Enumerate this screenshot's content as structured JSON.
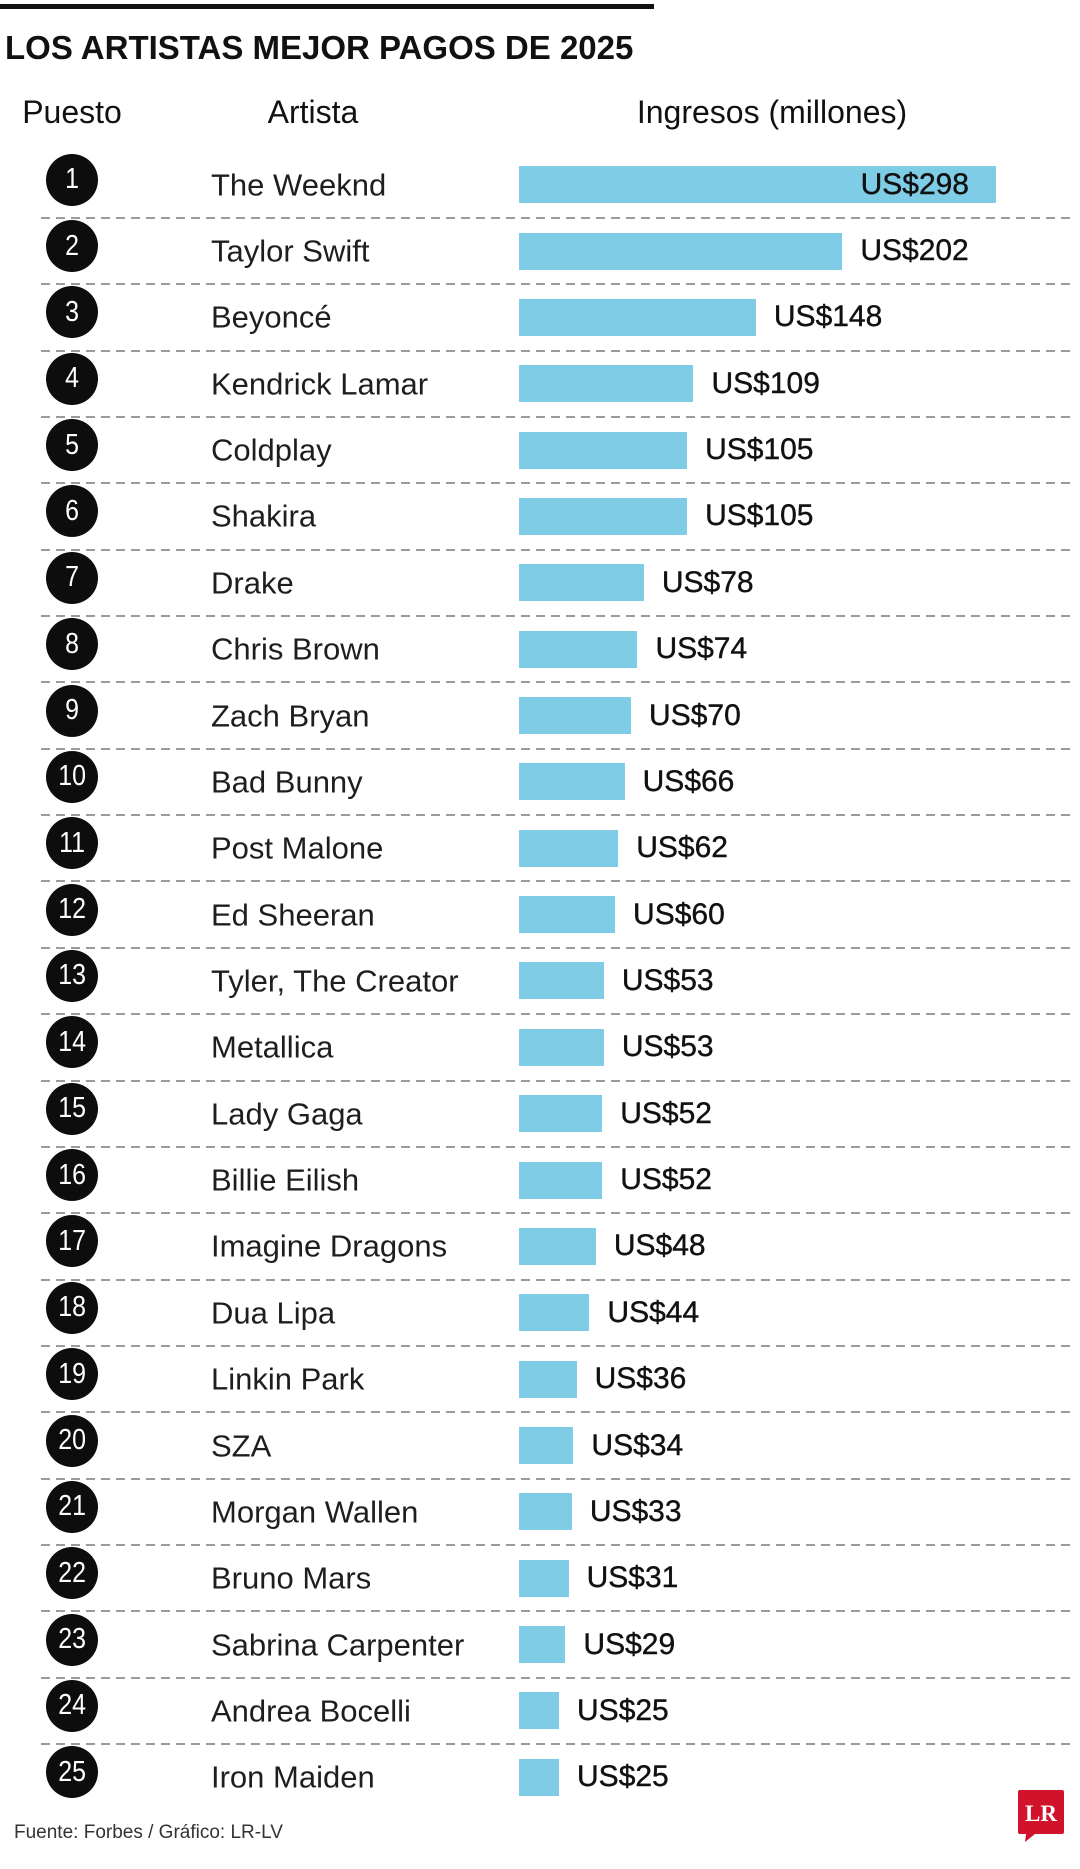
{
  "chart_data": {
    "type": "bar",
    "orientation": "horizontal",
    "title": "LOS ARTISTAS MEJOR PAGOS DE 2025",
    "rank_label": "Puesto",
    "ylabel": "Artista",
    "xlabel": "Ingresos (millones)",
    "ranks": [
      1,
      2,
      3,
      4,
      5,
      6,
      7,
      8,
      9,
      10,
      11,
      12,
      13,
      14,
      15,
      16,
      17,
      18,
      19,
      20,
      21,
      22,
      23,
      24,
      25
    ],
    "categories": [
      "The Weeknd",
      "Taylor Swift",
      "Beyoncé",
      "Kendrick Lamar",
      "Coldplay",
      "Shakira",
      "Drake",
      "Chris Brown",
      "Zach Bryan",
      "Bad Bunny",
      "Post Malone",
      "Ed Sheeran",
      "Tyler, The Creator",
      "Metallica",
      "Lady Gaga",
      "Billie Eilish",
      "Imagine Dragons",
      "Dua Lipa",
      "Linkin Park",
      "SZA",
      "Morgan Wallen",
      "Bruno Mars",
      "Sabrina Carpenter",
      "Andrea Bocelli",
      "Iron Maiden"
    ],
    "values": [
      298,
      202,
      148,
      109,
      105,
      105,
      78,
      74,
      70,
      66,
      62,
      60,
      53,
      53,
      52,
      52,
      48,
      44,
      36,
      34,
      33,
      31,
      29,
      25,
      25
    ],
    "value_labels": [
      "US$298",
      "US$202",
      "US$148",
      "US$109",
      "US$105",
      "US$105",
      "US$78",
      "US$74",
      "US$70",
      "US$66",
      "US$62",
      "US$60",
      "US$53",
      "US$53",
      "US$52",
      "US$52",
      "US$48",
      "US$44",
      "US$36",
      "US$34",
      "US$33",
      "US$31",
      "US$29",
      "US$25",
      "US$25"
    ],
    "xlim": [
      0,
      298
    ],
    "grid": false,
    "bar_color": "#7ECCE5"
  },
  "footer": {
    "source": "Fuente: Forbes / Gráfico: LR-LV"
  },
  "logo": {
    "text": "LR",
    "color": "#D0122B"
  }
}
